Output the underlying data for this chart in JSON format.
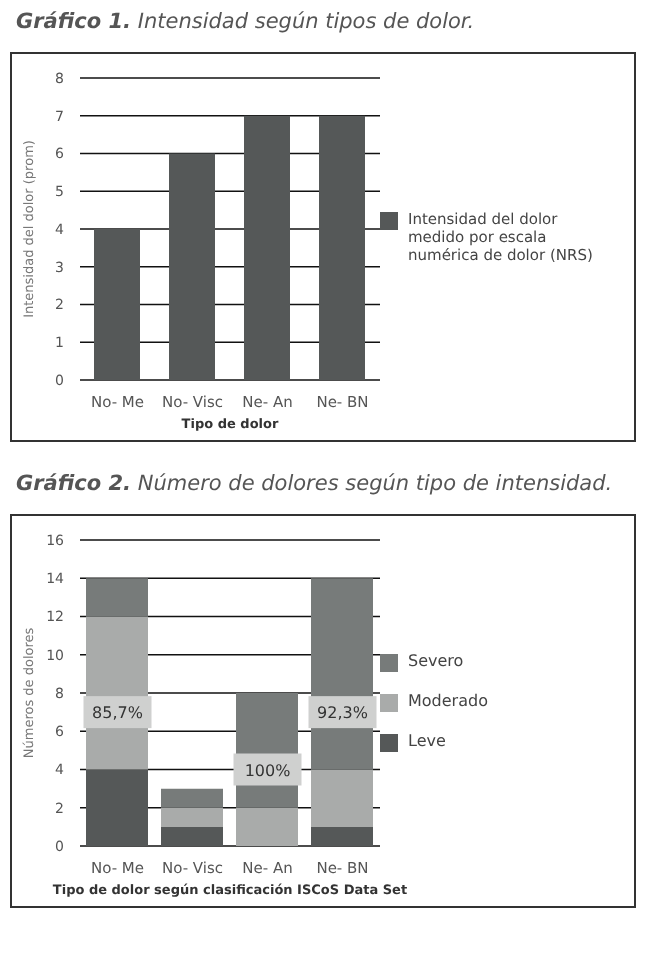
{
  "chart_data": [
    {
      "type": "bar",
      "title": "Gráfico 1. Intensidad según tipos de dolor.",
      "xlabel": "Tipo de dolor",
      "ylabel": "Intensidad del dolor (prom)",
      "categories": [
        "No- Me",
        "No- Visc",
        "Ne- An",
        "Ne- BN"
      ],
      "series": [
        {
          "name": "Intensidad del dolor medido por escala numérica de dolor (NRS)",
          "color": "#555858",
          "values": [
            4,
            6,
            7,
            7
          ]
        }
      ],
      "ylim": [
        0,
        8
      ],
      "yticks": [
        0,
        1,
        2,
        3,
        4,
        5,
        6,
        7,
        8
      ],
      "grid": "y",
      "legend": "right"
    },
    {
      "type": "bar",
      "title": "Gráfico 2. Número de dolores según tipo de intensidad.",
      "xlabel": "Tipo de dolor según clasificación ISCoS Data Set",
      "ylabel": "Números de dolores",
      "categories": [
        "No- Me",
        "No- Visc",
        "Ne- An",
        "Ne- BN"
      ],
      "stacked": true,
      "series": [
        {
          "name": "Leve",
          "color": "#555858",
          "values": [
            4,
            1,
            0,
            1
          ]
        },
        {
          "name": "Moderado",
          "color": "#a9abaa",
          "values": [
            8,
            1,
            2,
            3
          ]
        },
        {
          "name": "Severo",
          "color": "#777b7a",
          "values": [
            2,
            1,
            6,
            10
          ]
        }
      ],
      "ylim": [
        0,
        16
      ],
      "yticks": [
        0,
        2,
        4,
        6,
        8,
        10,
        12,
        14,
        16
      ],
      "grid": "y",
      "legend": "right",
      "annotations": [
        {
          "text": "85,7%",
          "x": "No- Me",
          "y": 7
        },
        {
          "text": "100%",
          "x": "Ne- An",
          "y": 4
        },
        {
          "text": "92,3%",
          "x": "Ne- BN",
          "y": 7
        }
      ]
    }
  ]
}
